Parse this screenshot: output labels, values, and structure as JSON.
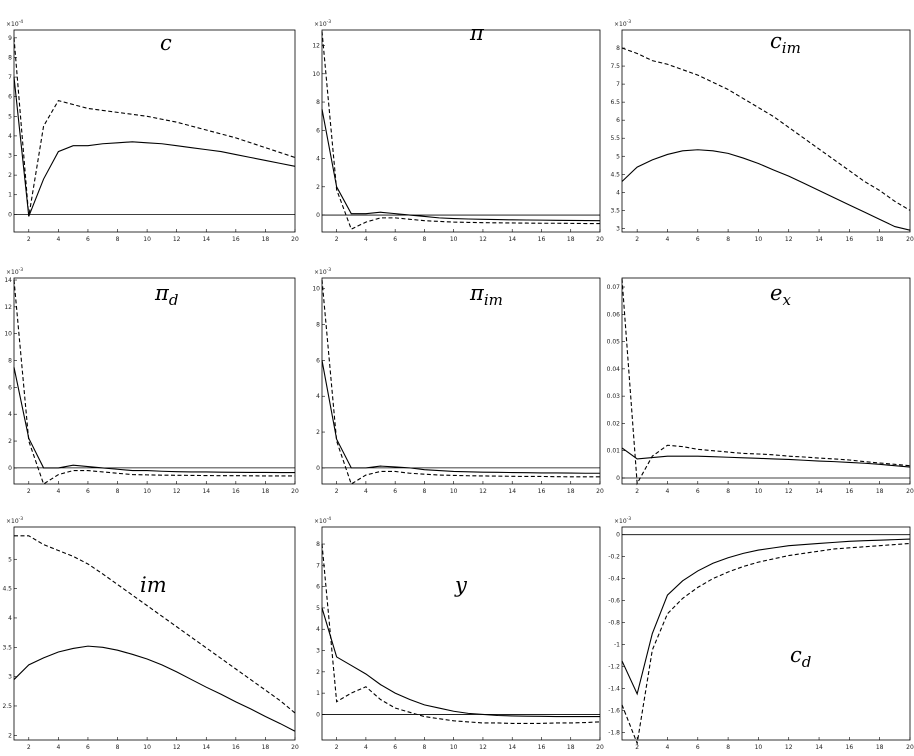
{
  "chart_data": [
    {
      "type": "line",
      "title": "c",
      "multiplier": {
        "base": "×10",
        "exponent": "-4"
      },
      "x": [
        1,
        2,
        3,
        4,
        5,
        6,
        7,
        8,
        9,
        10,
        11,
        12,
        13,
        14,
        15,
        16,
        17,
        18,
        19,
        20
      ],
      "xlim": [
        1,
        20
      ],
      "xticks": [
        2,
        4,
        6,
        8,
        10,
        12,
        14,
        16,
        18,
        20
      ],
      "ylim": [
        -0.9,
        9.4
      ],
      "yticks": [
        0,
        1,
        2,
        3,
        4,
        5,
        6,
        7,
        8,
        9
      ],
      "zero_line": true,
      "series": [
        {
          "color": "#000",
          "style": "solid",
          "values": [
            7,
            -0.1,
            1.8,
            3.2,
            3.5,
            3.5,
            3.6,
            3.65,
            3.7,
            3.65,
            3.6,
            3.5,
            3.4,
            3.3,
            3.2,
            3.05,
            2.9,
            2.75,
            2.6,
            2.45
          ]
        },
        {
          "color": "#000",
          "style": "dashed",
          "values": [
            9,
            -0.1,
            4.5,
            5.8,
            5.6,
            5.4,
            5.3,
            5.2,
            5.1,
            5.0,
            4.85,
            4.7,
            4.5,
            4.3,
            4.1,
            3.9,
            3.65,
            3.4,
            3.15,
            2.9
          ]
        }
      ]
    },
    {
      "type": "line",
      "title": "π",
      "multiplier": {
        "base": "×10",
        "exponent": "-3"
      },
      "x": [
        1,
        2,
        3,
        4,
        5,
        6,
        7,
        8,
        9,
        10,
        11,
        12,
        13,
        14,
        15,
        16,
        17,
        18,
        19,
        20
      ],
      "xlim": [
        1,
        20
      ],
      "xticks": [
        2,
        4,
        6,
        8,
        10,
        12,
        14,
        16,
        18,
        20
      ],
      "ylim": [
        -1.2,
        13.1
      ],
      "yticks": [
        0,
        2,
        4,
        6,
        8,
        10,
        12
      ],
      "zero_line": true,
      "series": [
        {
          "color": "#000",
          "style": "solid",
          "values": [
            7.5,
            2,
            0.1,
            0.1,
            0.2,
            0.1,
            0,
            -0.1,
            -0.2,
            -0.25,
            -0.28,
            -0.3,
            -0.32,
            -0.34,
            -0.35,
            -0.36,
            -0.37,
            -0.38,
            -0.39,
            -0.4
          ]
        },
        {
          "color": "#000",
          "style": "dashed",
          "values": [
            13,
            1.8,
            -1,
            -0.5,
            -0.2,
            -0.2,
            -0.3,
            -0.4,
            -0.45,
            -0.5,
            -0.52,
            -0.54,
            -0.55,
            -0.56,
            -0.57,
            -0.58,
            -0.58,
            -0.59,
            -0.6,
            -0.6
          ]
        }
      ]
    },
    {
      "type": "line",
      "title": "c",
      "title_subscript": "im",
      "multiplier": {
        "base": "×10",
        "exponent": "-3"
      },
      "x": [
        1,
        2,
        3,
        4,
        5,
        6,
        7,
        8,
        9,
        10,
        11,
        12,
        13,
        14,
        15,
        16,
        17,
        18,
        19,
        20
      ],
      "xlim": [
        1,
        20
      ],
      "xticks": [
        2,
        4,
        6,
        8,
        10,
        12,
        14,
        16,
        18,
        20
      ],
      "ylim": [
        2.9,
        8.5
      ],
      "yticks": [
        3,
        3.5,
        4,
        4.5,
        5,
        5.5,
        6,
        6.5,
        7,
        7.5,
        8
      ],
      "zero_line": false,
      "series": [
        {
          "color": "#000",
          "style": "solid",
          "values": [
            4.3,
            4.7,
            4.9,
            5.05,
            5.15,
            5.18,
            5.15,
            5.08,
            4.95,
            4.8,
            4.62,
            4.45,
            4.25,
            4.05,
            3.85,
            3.65,
            3.45,
            3.25,
            3.05,
            2.95
          ]
        },
        {
          "color": "#000",
          "style": "dashed",
          "values": [
            8,
            7.85,
            7.65,
            7.55,
            7.4,
            7.25,
            7.05,
            6.85,
            6.6,
            6.35,
            6.1,
            5.8,
            5.5,
            5.2,
            4.9,
            4.6,
            4.3,
            4.05,
            3.75,
            3.5
          ]
        }
      ]
    },
    {
      "type": "line",
      "title": "π",
      "title_subscript": "d",
      "multiplier": {
        "base": "×10",
        "exponent": "-3"
      },
      "x": [
        1,
        2,
        3,
        4,
        5,
        6,
        7,
        8,
        9,
        10,
        11,
        12,
        13,
        14,
        15,
        16,
        17,
        18,
        19,
        20
      ],
      "xlim": [
        1,
        20
      ],
      "xticks": [
        2,
        4,
        6,
        8,
        10,
        12,
        14,
        16,
        18,
        20
      ],
      "ylim": [
        -1.2,
        14.15
      ],
      "yticks": [
        0,
        2,
        4,
        6,
        8,
        10,
        12,
        14
      ],
      "zero_line": true,
      "series": [
        {
          "color": "#000",
          "style": "solid",
          "values": [
            7.5,
            2.2,
            0,
            0,
            0.2,
            0.1,
            0,
            -0.1,
            -0.2,
            -0.2,
            -0.25,
            -0.28,
            -0.3,
            -0.3,
            -0.32,
            -0.33,
            -0.34,
            -0.34,
            -0.35,
            -0.35
          ]
        },
        {
          "color": "#000",
          "style": "dashed",
          "values": [
            14,
            2,
            -1.2,
            -0.5,
            -0.2,
            -0.2,
            -0.3,
            -0.4,
            -0.5,
            -0.52,
            -0.54,
            -0.55,
            -0.56,
            -0.57,
            -0.58,
            -0.58,
            -0.59,
            -0.6,
            -0.6,
            -0.6
          ]
        }
      ]
    },
    {
      "type": "line",
      "title": "π",
      "title_subscript": "im",
      "multiplier": {
        "base": "×10",
        "exponent": "-3"
      },
      "x": [
        1,
        2,
        3,
        4,
        5,
        6,
        7,
        8,
        9,
        10,
        11,
        12,
        13,
        14,
        15,
        16,
        17,
        18,
        19,
        20
      ],
      "xlim": [
        1,
        20
      ],
      "xticks": [
        2,
        4,
        6,
        8,
        10,
        12,
        14,
        16,
        18,
        20
      ],
      "ylim": [
        -0.9,
        10.6
      ],
      "yticks": [
        0,
        2,
        4,
        6,
        8,
        10
      ],
      "zero_line": true,
      "series": [
        {
          "color": "#000",
          "style": "solid",
          "values": [
            6,
            1.6,
            0,
            0,
            0.1,
            0.05,
            0,
            -0.1,
            -0.15,
            -0.2,
            -0.22,
            -0.24,
            -0.25,
            -0.26,
            -0.27,
            -0.28,
            -0.28,
            -0.29,
            -0.3,
            -0.3
          ]
        },
        {
          "color": "#000",
          "style": "dashed",
          "values": [
            10.5,
            1.5,
            -0.9,
            -0.4,
            -0.2,
            -0.2,
            -0.3,
            -0.35,
            -0.4,
            -0.42,
            -0.44,
            -0.45,
            -0.46,
            -0.47,
            -0.48,
            -0.48,
            -0.49,
            -0.5,
            -0.5,
            -0.5
          ]
        }
      ]
    },
    {
      "type": "line",
      "title": "e",
      "title_subscript": "x",
      "x": [
        1,
        2,
        3,
        4,
        5,
        6,
        7,
        8,
        9,
        10,
        11,
        12,
        13,
        14,
        15,
        16,
        17,
        18,
        19,
        20
      ],
      "xlim": [
        1,
        20
      ],
      "xticks": [
        2,
        4,
        6,
        8,
        10,
        12,
        14,
        16,
        18,
        20
      ],
      "ylim": [
        -0.0022,
        0.0733
      ],
      "yticks": [
        0,
        0.01,
        0.02,
        0.03,
        0.04,
        0.05,
        0.06,
        0.07
      ],
      "zero_line": true,
      "series": [
        {
          "color": "#000",
          "style": "solid",
          "values": [
            0.011,
            0.007,
            0.0075,
            0.008,
            0.008,
            0.008,
            0.0078,
            0.0076,
            0.0074,
            0.0072,
            0.007,
            0.0068,
            0.0065,
            0.0062,
            0.006,
            0.0057,
            0.0054,
            0.005,
            0.0045,
            0.004
          ]
        },
        {
          "color": "#000",
          "style": "dashed",
          "values": [
            0.073,
            -0.002,
            0.008,
            0.012,
            0.0115,
            0.0105,
            0.01,
            0.0095,
            0.009,
            0.0088,
            0.0085,
            0.008,
            0.0077,
            0.0073,
            0.007,
            0.0066,
            0.006,
            0.0055,
            0.005,
            0.0045
          ]
        }
      ]
    },
    {
      "type": "line",
      "title": "im",
      "multiplier": {
        "base": "×10",
        "exponent": "-3"
      },
      "x": [
        1,
        2,
        3,
        4,
        5,
        6,
        7,
        8,
        9,
        10,
        11,
        12,
        13,
        14,
        15,
        16,
        17,
        18,
        19,
        20
      ],
      "xlim": [
        1,
        20
      ],
      "xticks": [
        2,
        4,
        6,
        8,
        10,
        12,
        14,
        16,
        18,
        20
      ],
      "ylim": [
        1.92,
        5.55
      ],
      "yticks": [
        2,
        2.5,
        3,
        3.5,
        4,
        4.5,
        5
      ],
      "zero_line": false,
      "series": [
        {
          "color": "#000",
          "style": "solid",
          "values": [
            2.95,
            3.2,
            3.32,
            3.42,
            3.48,
            3.52,
            3.5,
            3.45,
            3.38,
            3.3,
            3.2,
            3.08,
            2.95,
            2.82,
            2.7,
            2.57,
            2.45,
            2.32,
            2.2,
            2.07
          ]
        },
        {
          "color": "#000",
          "style": "dashed",
          "values": [
            5.4,
            5.4,
            5.25,
            5.15,
            5.05,
            4.92,
            4.75,
            4.57,
            4.39,
            4.21,
            4.03,
            3.85,
            3.67,
            3.49,
            3.31,
            3.13,
            2.95,
            2.77,
            2.59,
            2.38
          ]
        }
      ]
    },
    {
      "type": "line",
      "title": "y",
      "multiplier": {
        "base": "×10",
        "exponent": "-4"
      },
      "x": [
        1,
        2,
        3,
        4,
        5,
        6,
        7,
        8,
        9,
        10,
        11,
        12,
        13,
        14,
        15,
        16,
        17,
        18,
        19,
        20
      ],
      "xlim": [
        1,
        20
      ],
      "xticks": [
        2,
        4,
        6,
        8,
        10,
        12,
        14,
        16,
        18,
        20
      ],
      "ylim": [
        -1.2,
        8.8
      ],
      "yticks": [
        0,
        1,
        2,
        3,
        4,
        5,
        6,
        7,
        8
      ],
      "zero_line": true,
      "series": [
        {
          "color": "#000",
          "style": "solid",
          "values": [
            5,
            2.7,
            2.3,
            1.9,
            1.4,
            1,
            0.7,
            0.45,
            0.3,
            0.15,
            0.05,
            0,
            -0.05,
            -0.07,
            -0.08,
            -0.09,
            -0.1,
            -0.1,
            -0.1,
            -0.1
          ]
        },
        {
          "color": "#000",
          "style": "dashed",
          "values": [
            8,
            0.6,
            1,
            1.3,
            0.7,
            0.3,
            0.1,
            -0.1,
            -0.2,
            -0.3,
            -0.35,
            -0.4,
            -0.4,
            -0.42,
            -0.42,
            -0.42,
            -0.4,
            -0.4,
            -0.38,
            -0.35
          ]
        }
      ]
    },
    {
      "type": "line",
      "title": "c",
      "title_subscript": "d",
      "multiplier": {
        "base": "×10",
        "exponent": "-3"
      },
      "x": [
        1,
        2,
        3,
        4,
        5,
        6,
        7,
        8,
        9,
        10,
        11,
        12,
        13,
        14,
        15,
        16,
        17,
        18,
        19,
        20
      ],
      "xlim": [
        1,
        20
      ],
      "xticks": [
        2,
        4,
        6,
        8,
        10,
        12,
        14,
        16,
        18,
        20
      ],
      "ylim": [
        -1.87,
        0.07
      ],
      "yticks": [
        -1.8,
        -1.6,
        -1.4,
        -1.2,
        -1,
        -0.8,
        -0.6,
        -0.4,
        -0.2,
        0
      ],
      "zero_line": true,
      "series": [
        {
          "color": "#000",
          "style": "solid",
          "values": [
            -1.15,
            -1.45,
            -0.9,
            -0.55,
            -0.42,
            -0.33,
            -0.26,
            -0.21,
            -0.17,
            -0.14,
            -0.12,
            -0.1,
            -0.09,
            -0.08,
            -0.07,
            -0.06,
            -0.055,
            -0.05,
            -0.045,
            -0.04
          ]
        },
        {
          "color": "#000",
          "style": "dashed",
          "values": [
            -1.55,
            -1.9,
            -1.05,
            -0.72,
            -0.58,
            -0.48,
            -0.4,
            -0.34,
            -0.29,
            -0.25,
            -0.22,
            -0.19,
            -0.17,
            -0.15,
            -0.13,
            -0.12,
            -0.11,
            -0.1,
            -0.09,
            -0.08
          ]
        }
      ]
    }
  ]
}
